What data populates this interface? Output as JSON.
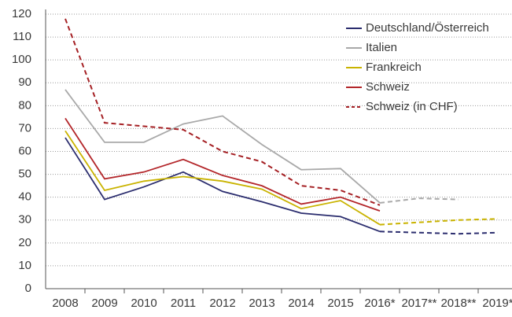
{
  "chart_data": {
    "type": "line",
    "categories": [
      "2008",
      "2009",
      "2010",
      "2011",
      "2012",
      "2013",
      "2014",
      "2015",
      "2016*",
      "2017**",
      "2018**",
      "2019*"
    ],
    "series": [
      {
        "name": "Deutschland/Österreich",
        "color": "#2b2d6e",
        "dash_from": 8,
        "values": [
          66,
          39,
          44.5,
          51,
          42.5,
          38,
          33,
          31.5,
          25,
          24.5,
          24,
          24.5
        ]
      },
      {
        "name": "Italien",
        "color": "#a9a9a9",
        "dash_from": 8,
        "values": [
          87,
          64,
          64,
          72,
          75.5,
          63,
          52,
          52.5,
          37.5,
          39.5,
          39,
          null
        ]
      },
      {
        "name": "Frankreich",
        "color": "#c9b300",
        "dash_from": 8,
        "values": [
          69,
          43,
          47,
          49,
          47,
          43.5,
          35,
          38.5,
          28,
          29,
          30,
          30.5
        ]
      },
      {
        "name": "Schweiz",
        "color": "#b3262a",
        "dash_from": 8,
        "values": [
          74.5,
          48,
          51,
          56.5,
          49.5,
          45,
          37,
          40,
          34,
          null,
          null,
          null
        ]
      },
      {
        "name": "Schweiz (in CHF)",
        "color": "#a52024",
        "dashed": true,
        "values": [
          118,
          72.5,
          71,
          69.5,
          60,
          55.5,
          45,
          43,
          36.5,
          null,
          null,
          null
        ]
      }
    ],
    "ylim": [
      0,
      120
    ],
    "yticks": [
      0,
      10,
      20,
      30,
      40,
      50,
      60,
      70,
      80,
      90,
      100,
      110,
      120
    ],
    "grid": true,
    "legend": "top-right"
  }
}
